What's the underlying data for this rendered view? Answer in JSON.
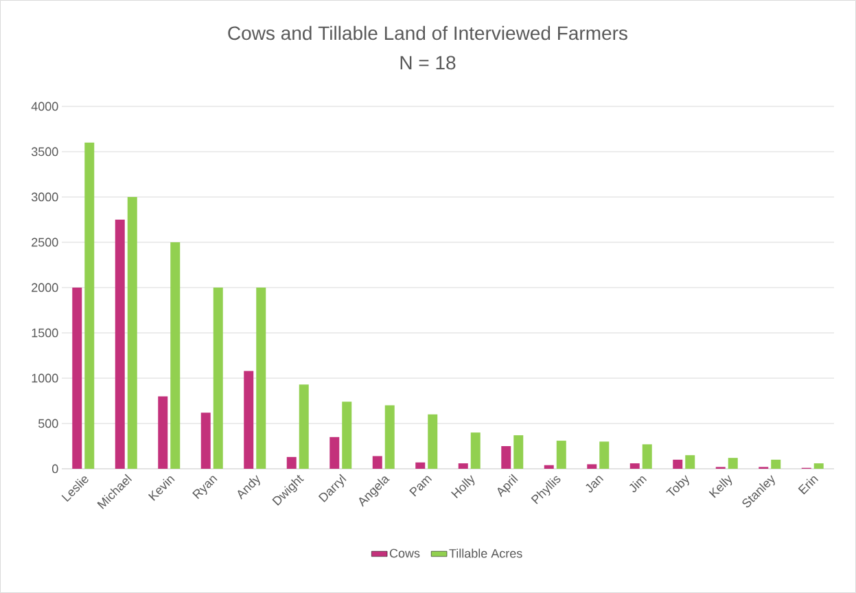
{
  "chart_data": {
    "type": "bar",
    "title": "Cows and Tillable Land of Interviewed Farmers",
    "subtitle": "N = 18",
    "categories": [
      "Leslie",
      "Michael",
      "Kevin",
      "Ryan",
      "Andy",
      "Dwight",
      "Darryl",
      "Angela",
      "Pam",
      "Holly",
      "April",
      "Phyllis",
      "Jan",
      "Jim",
      "Toby",
      "Kelly",
      "Stanley",
      "Erin"
    ],
    "series": [
      {
        "name": "Cows",
        "color": "#c3317b",
        "values": [
          2000,
          2750,
          800,
          620,
          1080,
          130,
          350,
          140,
          70,
          60,
          250,
          40,
          50,
          60,
          100,
          20,
          20,
          10
        ]
      },
      {
        "name": "Tillable Acres",
        "color": "#92d050",
        "values": [
          3600,
          3000,
          2500,
          2000,
          2000,
          930,
          740,
          700,
          600,
          400,
          370,
          310,
          300,
          270,
          150,
          120,
          100,
          60
        ]
      }
    ],
    "ylim": [
      0,
      4000
    ],
    "yticks": [
      0,
      500,
      1000,
      1500,
      2000,
      2500,
      3000,
      3500,
      4000
    ],
    "grid": "y",
    "legend": "bottom"
  }
}
